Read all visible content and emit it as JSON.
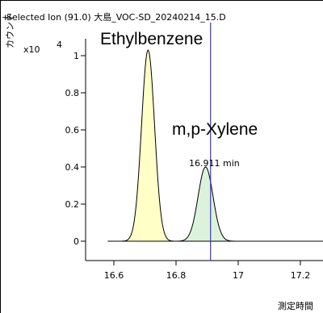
{
  "chart_data": {
    "type": "area",
    "title": "Selected Ion (91.0) 大島_VOC-SD_20240214_15.D",
    "title_prefix": "+",
    "ylabel": "カウント",
    "y_multiplier": "x10",
    "y_exponent": "4",
    "xlabel": "測定時間",
    "x_ticks": [
      "16.6",
      "16.8",
      "17",
      "17.2"
    ],
    "y_ticks": [
      "0",
      "0.2",
      "0.4",
      "0.6",
      "0.8",
      "1"
    ],
    "xlim": [
      16.48,
      17.33
    ],
    "ylim": [
      -0.1,
      1.42
    ],
    "series": [
      {
        "name": "Ethylbenzene",
        "peak_x": 16.71,
        "peak_y": 1.03,
        "sigma": 0.021,
        "fill": "#ffffc8"
      },
      {
        "name": "m,p-Xylene",
        "peak_x": 16.895,
        "peak_y": 0.4,
        "sigma": 0.024,
        "fill": "#ddf2dd"
      }
    ],
    "marker": {
      "x": 16.911,
      "label": "16.911 min",
      "color": "#3a3aa8"
    },
    "baseline_x": [
      16.58,
      17.33
    ]
  }
}
